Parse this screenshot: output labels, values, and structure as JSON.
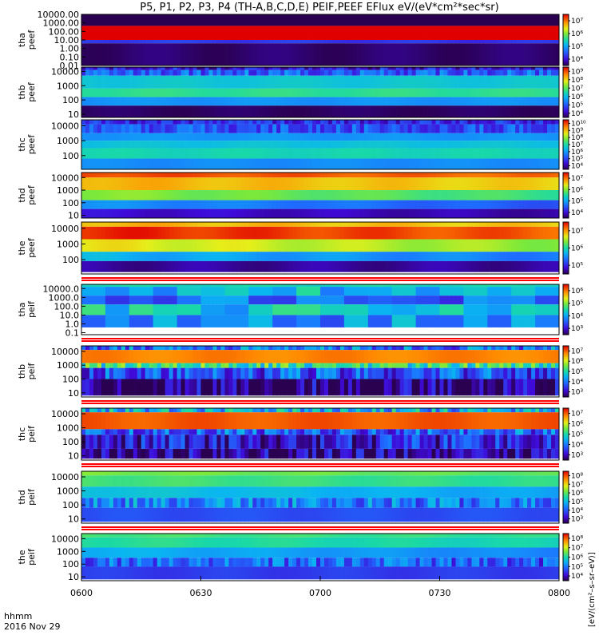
{
  "page": {
    "title": "P5, P1, P2, P3, P4 (TH-A,B,C,D,E) PEIF,PEEF EFlux eV/(eV*cm²*sec*sr)",
    "xaxis": {
      "label": "hhmm",
      "date": "2016 Nov 29",
      "ticks": [
        "0600",
        "0630",
        "0700",
        "0730",
        "0800"
      ]
    },
    "colorbar_unit_label": "[eV/(cm²–s–sr–eV)]"
  },
  "chart_data": [
    {
      "type": "heatmap",
      "probe": "tha",
      "product": "peef",
      "ylabel": [
        "tha",
        "peef"
      ],
      "yticks": [
        "10000.00",
        "1000.00",
        "100.00",
        "10.00",
        "1.00",
        "0.10",
        "0.01"
      ],
      "yscale": "log",
      "ylim": [
        0.01,
        10000
      ],
      "colorbar": {
        "ticks": [
          "10⁷",
          "10⁶",
          "10⁵",
          "10⁴"
        ],
        "range_log10": [
          3.7,
          7.6
        ]
      },
      "bands_log10": [
        [
          4.6,
          5.0,
          4.4,
          "smooth"
        ],
        [
          0.33,
          1.2,
          2.65,
          "smooth"
        ],
        [
          7.9,
          7.9,
          1.0,
          "smooth"
        ],
        [
          4.5,
          4.4,
          0.6,
          "smooth"
        ],
        [
          3.8,
          3.8,
          -2.0,
          "smooth"
        ]
      ],
      "x_range": [
        "0600",
        "0800"
      ]
    },
    {
      "type": "heatmap",
      "probe": "thb",
      "product": "peef",
      "ylabel": [
        "thb",
        "peef"
      ],
      "yticks": [
        "10000",
        "1000",
        "100",
        "10"
      ],
      "yscale": "log",
      "ylim": [
        6,
        20000
      ],
      "colorbar": {
        "ticks": [
          "10⁹",
          "10⁸",
          "10⁷",
          "10⁶",
          "10⁵",
          "10⁴"
        ],
        "range_log10": [
          3.5,
          9.6
        ]
      },
      "bands_log10": [
        [
          4.3,
          4.3,
          4.1,
          "noisy"
        ],
        [
          5.1,
          5.1,
          3.7,
          "noisy"
        ],
        [
          6.2,
          6.2,
          2.8,
          "smooth"
        ],
        [
          6.7,
          6.7,
          2.2,
          "smooth"
        ],
        [
          5.6,
          5.6,
          1.6,
          "smooth"
        ],
        [
          3.6,
          3.6,
          0.8,
          "smooth"
        ]
      ],
      "x_range": [
        "0600",
        "0800"
      ]
    },
    {
      "type": "heatmap",
      "probe": "thc",
      "product": "peef",
      "ylabel": [
        "thc",
        "peef"
      ],
      "yticks": [
        "10000",
        "1000",
        "100"
      ],
      "yscale": "log",
      "ylim": [
        12,
        25000
      ],
      "colorbar": {
        "ticks": [
          "10¹⁰",
          "10⁹",
          "10⁸",
          "10⁷",
          "10⁶",
          "10⁵",
          "10⁴"
        ],
        "range_log10": [
          3.3,
          10.5
        ]
      },
      "bands_log10": [
        [
          4.5,
          4.5,
          4.1,
          "noisy"
        ],
        [
          5.0,
          5.0,
          3.5,
          "noisy"
        ],
        [
          5.8,
          5.8,
          3.0,
          "smooth"
        ],
        [
          6.4,
          6.4,
          2.5,
          "smooth"
        ],
        [
          6.8,
          6.8,
          1.8,
          "smooth"
        ],
        [
          5.7,
          5.7,
          1.1,
          "smooth"
        ]
      ],
      "x_range": [
        "0600",
        "0800"
      ]
    },
    {
      "type": "heatmap",
      "probe": "thd",
      "product": "peef",
      "ylabel": [
        "thd",
        "peef"
      ],
      "yticks": [
        "10000",
        "1000",
        "100",
        "10"
      ],
      "yscale": "log",
      "ylim": [
        6,
        25000
      ],
      "colorbar": {
        "ticks": [
          "10⁷",
          "10⁶",
          "10⁵",
          "10⁴"
        ],
        "range_log10": [
          3.6,
          7.7
        ]
      },
      "bands_log10": [
        [
          7.4,
          7.2,
          4.0,
          "smooth"
        ],
        [
          6.9,
          6.7,
          3.0,
          "smooth"
        ],
        [
          6.2,
          5.8,
          2.2,
          "smooth"
        ],
        [
          5.0,
          4.6,
          1.5,
          "smooth"
        ],
        [
          4.1,
          3.9,
          0.8,
          "smooth"
        ]
      ],
      "x_range": [
        "0600",
        "0800"
      ]
    },
    {
      "type": "heatmap",
      "probe": "the",
      "product": "peef",
      "ylabel": [
        "the",
        "peef"
      ],
      "yticks": [
        "10000",
        "1000",
        "100"
      ],
      "yscale": "log",
      "ylim": [
        12,
        25000
      ],
      "colorbar": {
        "ticks": [
          "10⁷",
          "10⁶",
          "10⁵"
        ],
        "range_log10": [
          4.6,
          7.6
        ]
      },
      "bands_log10": [
        [
          7.0,
          6.9,
          4.1,
          "smooth"
        ],
        [
          7.5,
          7.3,
          3.3,
          "smooth"
        ],
        [
          6.8,
          6.5,
          2.5,
          "smooth"
        ],
        [
          5.8,
          5.5,
          1.9,
          "smooth"
        ],
        [
          4.8,
          4.8,
          1.2,
          "smooth"
        ]
      ],
      "x_range": [
        "0600",
        "0800"
      ]
    },
    {
      "type": "heatmap",
      "probe": "tha",
      "product": "peif",
      "ylabel": [
        "tha",
        "peif"
      ],
      "yticks": [
        "10000.0",
        "1000.0",
        "100.0",
        "10.0",
        "1.0",
        "0.1"
      ],
      "yscale": "log",
      "ylim": [
        0.06,
        30000
      ],
      "colorbar": {
        "ticks": [
          "10⁶",
          "10⁵",
          "10⁴",
          "10³"
        ],
        "range_log10": [
          2.7,
          6.6
        ]
      },
      "bands_log10": [
        [
          4.6,
          4.6,
          4.2,
          "smooth"
        ],
        [
          4.3,
          4.3,
          3.2,
          "blocky"
        ],
        [
          3.8,
          3.8,
          2.2,
          "blocky"
        ],
        [
          4.4,
          4.4,
          1.0,
          "blocky"
        ],
        [
          4.0,
          4.0,
          -0.4,
          "blocky"
        ]
      ],
      "x_range": [
        "0600",
        "0800"
      ]
    },
    {
      "type": "heatmap",
      "probe": "thb",
      "product": "peif",
      "ylabel": [
        "thb",
        "peif"
      ],
      "yticks": [
        "10000",
        "1000",
        "100",
        "10"
      ],
      "yscale": "log",
      "ylim": [
        5,
        25000
      ],
      "colorbar": {
        "ticks": [
          "10⁷",
          "10⁶",
          "10⁵",
          "10⁴",
          "10³"
        ],
        "range_log10": [
          3.4,
          7.6
        ]
      },
      "bands_log10": [
        [
          4.6,
          4.6,
          4.1,
          "noisy"
        ],
        [
          7.0,
          7.0,
          3.15,
          "smooth"
        ],
        [
          5.6,
          5.6,
          2.8,
          "noisy"
        ],
        [
          4.4,
          4.4,
          2.0,
          "noisy"
        ],
        [
          3.6,
          3.6,
          0.8,
          "noisy"
        ]
      ],
      "x_range": [
        "0600",
        "0800"
      ]
    },
    {
      "type": "heatmap",
      "probe": "thc",
      "product": "peif",
      "ylabel": [
        "thc",
        "peif"
      ],
      "yticks": [
        "10000",
        "1000",
        "100",
        "10"
      ],
      "yscale": "log",
      "ylim": [
        5,
        25000
      ],
      "colorbar": {
        "ticks": [
          "10⁷",
          "10⁶",
          "10⁵",
          "10⁴",
          "10³"
        ],
        "range_log10": [
          3.4,
          7.6
        ]
      },
      "bands_log10": [
        [
          5.0,
          5.0,
          4.1,
          "noisy"
        ],
        [
          7.2,
          7.2,
          2.9,
          "smooth"
        ],
        [
          4.5,
          4.5,
          2.5,
          "noisy"
        ],
        [
          4.0,
          4.0,
          1.5,
          "noisy"
        ],
        [
          3.6,
          3.6,
          0.8,
          "noisy"
        ]
      ],
      "x_range": [
        "0600",
        "0800"
      ]
    },
    {
      "type": "heatmap",
      "probe": "thd",
      "product": "peif",
      "ylabel": [
        "thd",
        "peif"
      ],
      "yticks": [
        "10000",
        "1000",
        "100",
        "10"
      ],
      "yscale": "log",
      "ylim": [
        5,
        25000
      ],
      "colorbar": {
        "ticks": [
          "10⁸",
          "10⁷",
          "10⁶",
          "10⁵",
          "10⁴",
          "10³"
        ],
        "range_log10": [
          3.4,
          8.6
        ]
      },
      "bands_log10": [
        [
          6.6,
          6.4,
          4.1,
          "smooth"
        ],
        [
          6.3,
          6.1,
          3.3,
          "smooth"
        ],
        [
          5.7,
          5.3,
          2.5,
          "smooth"
        ],
        [
          5.1,
          4.9,
          1.8,
          "noisy"
        ],
        [
          4.6,
          4.6,
          0.8,
          "smooth"
        ]
      ],
      "x_range": [
        "0600",
        "0800"
      ]
    },
    {
      "type": "heatmap",
      "probe": "the",
      "product": "peif",
      "ylabel": [
        "the",
        "peif"
      ],
      "yticks": [
        "10000",
        "1000",
        "100",
        "10"
      ],
      "yscale": "log",
      "ylim": [
        5,
        25000
      ],
      "colorbar": {
        "ticks": [
          "10⁸",
          "10⁷",
          "10⁶",
          "10⁵",
          "10⁴"
        ],
        "range_log10": [
          3.6,
          8.6
        ]
      },
      "bands_log10": [
        [
          6.4,
          6.2,
          4.1,
          "smooth"
        ],
        [
          6.2,
          6.0,
          3.3,
          "smooth"
        ],
        [
          5.6,
          5.2,
          2.5,
          "smooth"
        ],
        [
          5.0,
          4.8,
          1.8,
          "noisy"
        ],
        [
          4.6,
          4.6,
          0.8,
          "smooth"
        ]
      ],
      "x_range": [
        "0600",
        "0800"
      ]
    }
  ]
}
